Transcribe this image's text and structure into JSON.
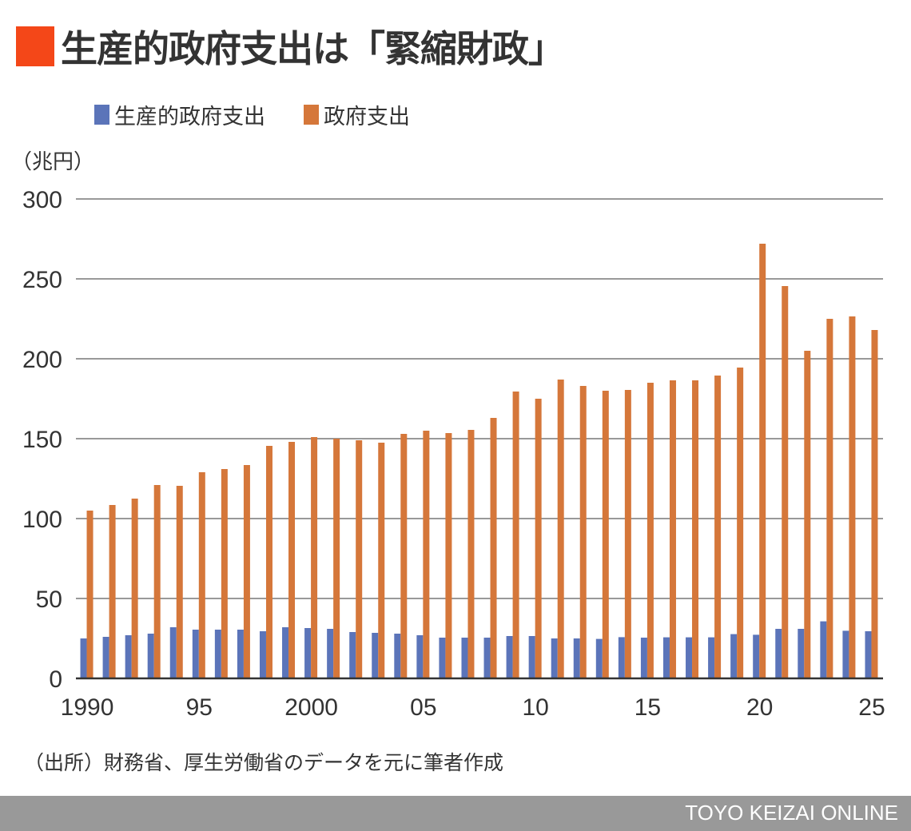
{
  "header": {
    "title": "生産的政府支出は「緊縮財政」",
    "accent_color": "#f44718"
  },
  "unit_label": "（兆円）",
  "source_note": "（出所）財務省、厚生労働省のデータを元に筆者作成",
  "footer": {
    "brand": "TOYO KEIZAI ONLINE"
  },
  "chart_data": {
    "type": "bar",
    "title": "生産的政府支出は「緊縮財政」",
    "xlabel": "",
    "ylabel": "（兆円）",
    "ylim": [
      0,
      300
    ],
    "yticks": [
      "0",
      "50",
      "100",
      "150",
      "200",
      "250",
      "300"
    ],
    "ytick_values": [
      0,
      50,
      100,
      150,
      200,
      250,
      300
    ],
    "grid": true,
    "legend_position": "top",
    "categories": [
      1990,
      1991,
      1992,
      1993,
      1994,
      1995,
      1996,
      1997,
      1998,
      1999,
      2000,
      2001,
      2002,
      2003,
      2004,
      2005,
      2006,
      2007,
      2008,
      2009,
      2010,
      2011,
      2012,
      2013,
      2014,
      2015,
      2016,
      2017,
      2018,
      2019,
      2020,
      2021,
      2022,
      2023,
      2024,
      2025
    ],
    "xtick_labels": [
      {
        "year": 1990,
        "label": "1990"
      },
      {
        "year": 1995,
        "label": "95"
      },
      {
        "year": 2000,
        "label": "2000"
      },
      {
        "year": 2005,
        "label": "05"
      },
      {
        "year": 2010,
        "label": "10"
      },
      {
        "year": 2015,
        "label": "15"
      },
      {
        "year": 2020,
        "label": "20"
      },
      {
        "year": 2025,
        "label": "25"
      }
    ],
    "series": [
      {
        "name": "生産的政府支出",
        "color": "#5b74b9",
        "values": [
          25,
          26,
          27,
          28,
          32,
          30.5,
          30.5,
          30.5,
          29.5,
          32,
          31.5,
          31,
          29,
          28.5,
          28,
          27,
          25.5,
          25.5,
          25.5,
          26.5,
          26.5,
          25,
          25,
          24.7,
          25.8,
          25.5,
          25.7,
          25.7,
          25.7,
          27.7,
          27.3,
          31,
          31,
          35.7,
          29.8,
          29.5
        ]
      },
      {
        "name": "政府支出",
        "color": "#d5773a",
        "values": [
          105,
          108.5,
          112.5,
          121,
          120.5,
          129,
          131,
          133.5,
          145.5,
          148,
          151,
          150,
          149,
          147.5,
          153,
          155,
          153.5,
          155.5,
          163,
          179.5,
          175,
          187,
          183,
          180,
          180.5,
          185,
          186.5,
          186.5,
          189.5,
          194.5,
          272,
          245.5,
          205,
          225,
          226.5,
          218
        ]
      }
    ]
  }
}
